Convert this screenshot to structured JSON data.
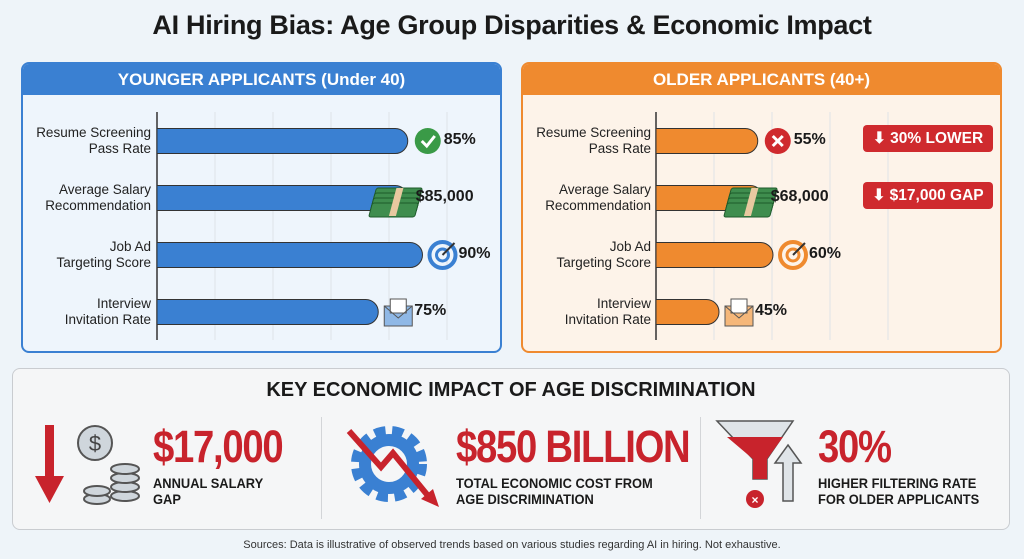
{
  "title": "AI Hiring Bias: Age Group Disparities & Economic Impact",
  "chart_data": [
    {
      "type": "bar",
      "orientation": "horizontal",
      "title": "YOUNGER APPLICANTS (Under 40)",
      "categories": [
        "Resume Screening Pass Rate",
        "Average Salary Recommendation",
        "Job Ad Targeting Score",
        "Interview Invitation Rate"
      ],
      "values": [
        85,
        85000,
        90,
        75
      ],
      "value_labels": [
        "85%",
        "$85,000",
        "90%",
        "75%"
      ],
      "icons": [
        "check-circle-icon",
        "money-stack-icon",
        "target-icon",
        "envelope-icon"
      ],
      "grid": true,
      "color": "#3a80d2"
    },
    {
      "type": "bar",
      "orientation": "horizontal",
      "title": "OLDER APPLICANTS (40+)",
      "categories": [
        "Resume Screening Pass Rate",
        "Average Salary Recommendation",
        "Job Ad Targeting Score",
        "Interview Invitation Rate"
      ],
      "values": [
        55,
        68000,
        60,
        45
      ],
      "value_labels": [
        "55%",
        "$68,000",
        "60%",
        "45%"
      ],
      "icons": [
        "x-circle-icon",
        "money-stack-icon",
        "target-icon",
        "envelope-icon"
      ],
      "annotations": [
        "30% LOWER",
        "$17,000 GAP"
      ],
      "grid": true,
      "color": "#ef8a2f"
    }
  ],
  "impact": {
    "title": "KEY ECONOMIC IMPACT OF AGE DISCRIMINATION",
    "items": [
      {
        "value": "$17,000",
        "label1": "ANNUAL SALARY",
        "label2": "GAP"
      },
      {
        "value": "$850 BILLION",
        "label1": "TOTAL ECONOMIC COST FROM",
        "label2": "AGE DISCRIMINATION"
      },
      {
        "value": "30%",
        "label1": "HIGHER FILTERING RATE",
        "label2": "FOR OLDER APPLICANTS"
      }
    ]
  },
  "sources": "Sources: Data is illustrative of observed trends based on various studies regarding AI in hiring. Not exhaustive.",
  "colors": {
    "young": "#3a80d2",
    "old": "#ef8a2f",
    "alert": "#c8232c"
  }
}
